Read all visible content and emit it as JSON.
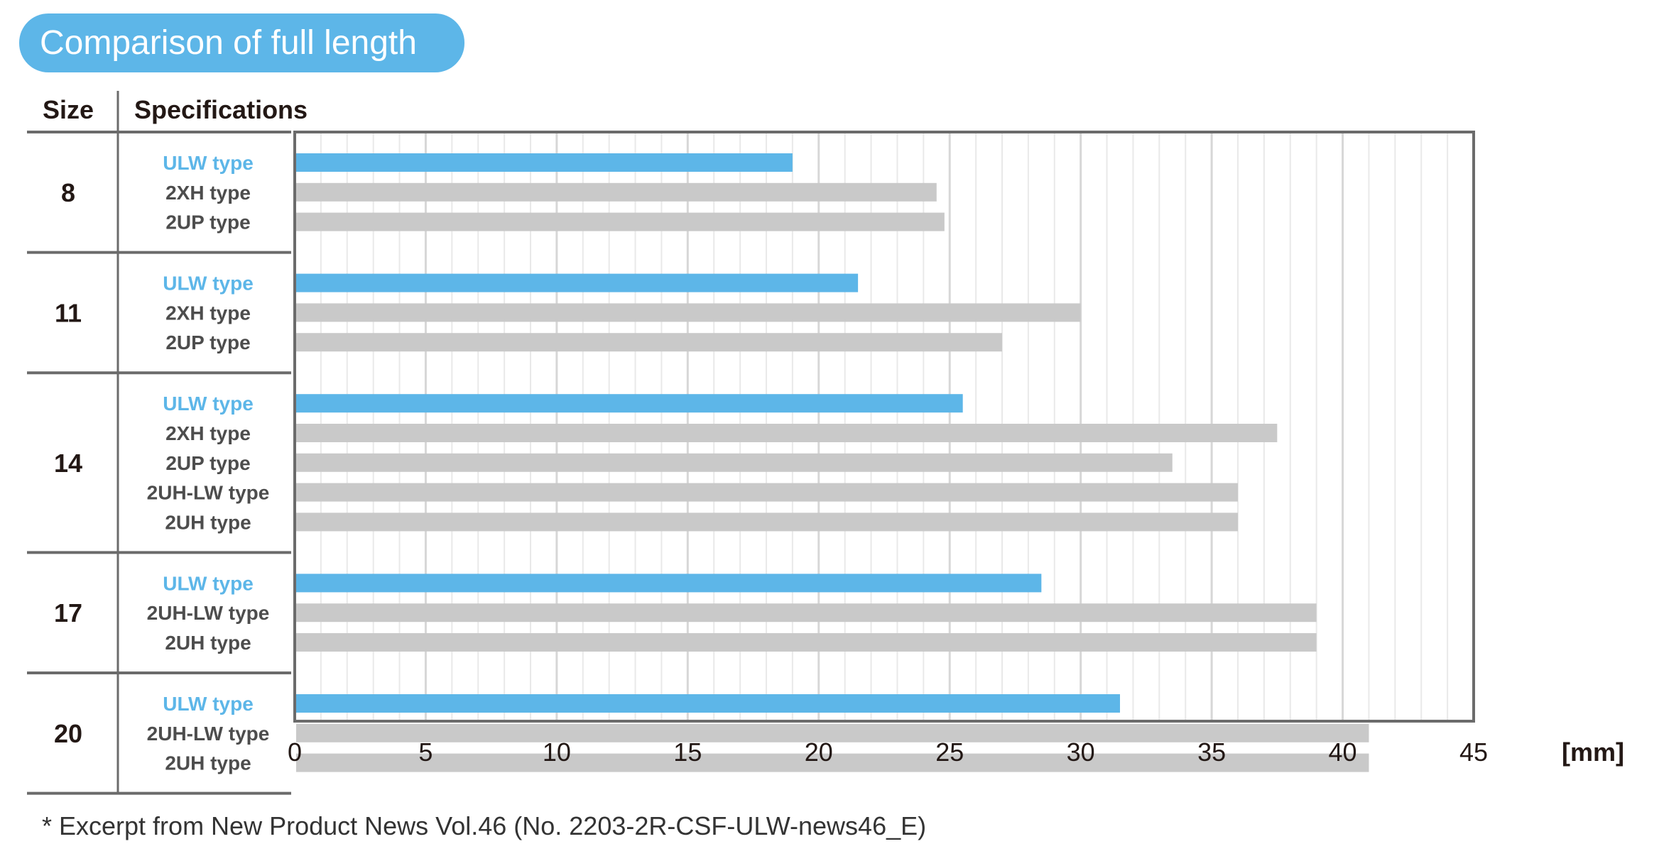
{
  "title": "Comparison of full length",
  "headers": {
    "size": "Size",
    "specifications": "Specifications"
  },
  "footnote": "* Excerpt from New Product News Vol.46 (No. 2203-2R-CSF-ULW-news46_E)",
  "colors": {
    "highlight": "#5DB6E8",
    "other": "#C9C9C9",
    "highlight_text": "#5DB6E8",
    "other_text": "#4D4D4D",
    "frame": "#6B6B6B",
    "grid_major": "#D7D7D7",
    "grid_minor": "#E9E9E9",
    "title_bg": "#5DB6E8"
  },
  "chart_data": {
    "type": "bar",
    "orientation": "horizontal",
    "xlabel": "[mm]",
    "xlim": [
      0,
      45
    ],
    "x_ticks": [
      0,
      5,
      10,
      15,
      20,
      25,
      30,
      35,
      40,
      45
    ],
    "x_tick_labels": [
      "0",
      "5",
      "10",
      "15",
      "20",
      "25",
      "30",
      "35",
      "40",
      "45"
    ],
    "grid": true,
    "groups": [
      {
        "size": "8",
        "bars": [
          {
            "label": "ULW type",
            "value": 19.0,
            "highlight": true
          },
          {
            "label": "2XH type",
            "value": 24.5,
            "highlight": false
          },
          {
            "label": "2UP type",
            "value": 24.8,
            "highlight": false
          }
        ]
      },
      {
        "size": "11",
        "bars": [
          {
            "label": "ULW type",
            "value": 21.5,
            "highlight": true
          },
          {
            "label": "2XH type",
            "value": 30.0,
            "highlight": false
          },
          {
            "label": "2UP type",
            "value": 27.0,
            "highlight": false
          }
        ]
      },
      {
        "size": "14",
        "bars": [
          {
            "label": "ULW type",
            "value": 25.5,
            "highlight": true
          },
          {
            "label": "2XH type",
            "value": 37.5,
            "highlight": false
          },
          {
            "label": "2UP type",
            "value": 33.5,
            "highlight": false
          },
          {
            "label": "2UH-LW type",
            "value": 36.0,
            "highlight": false
          },
          {
            "label": "2UH type",
            "value": 36.0,
            "highlight": false
          }
        ]
      },
      {
        "size": "17",
        "bars": [
          {
            "label": "ULW type",
            "value": 28.5,
            "highlight": true
          },
          {
            "label": "2UH-LW type",
            "value": 39.0,
            "highlight": false
          },
          {
            "label": "2UH type",
            "value": 39.0,
            "highlight": false
          }
        ]
      },
      {
        "size": "20",
        "bars": [
          {
            "label": "ULW type",
            "value": 31.5,
            "highlight": true
          },
          {
            "label": "2UH-LW type",
            "value": 41.0,
            "highlight": false
          },
          {
            "label": "2UH type",
            "value": 41.0,
            "highlight": false
          }
        ]
      }
    ]
  }
}
